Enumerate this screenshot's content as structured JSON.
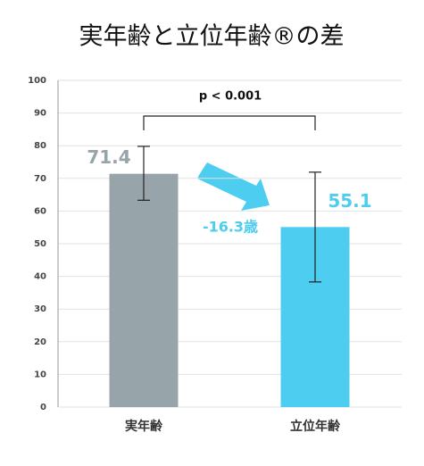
{
  "chart_data": {
    "type": "bar",
    "title": "実年齢と立位年齢®の差",
    "categories": [
      "実年齢",
      "立位年齢"
    ],
    "values": [
      71.4,
      55.1
    ],
    "colors": [
      "#97a4a9",
      "#4dcdf0"
    ],
    "error_low": [
      63.3,
      38.3
    ],
    "error_high": [
      79.8,
      71.9
    ],
    "ylim": [
      0,
      100
    ],
    "yticks": [
      0,
      10,
      20,
      30,
      40,
      50,
      60,
      70,
      80,
      90,
      100
    ],
    "grid": true,
    "significance_label": "p < 0.001",
    "difference_label": "-16.3歳"
  }
}
